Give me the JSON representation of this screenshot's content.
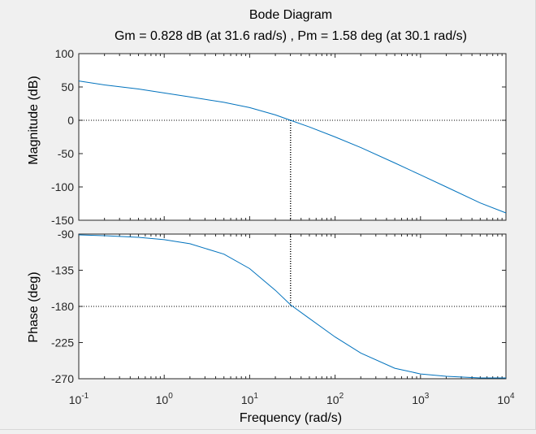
{
  "chart_data": [
    {
      "type": "line",
      "title": "Bode Diagram",
      "subtitle": "Gm = 0.828 dB (at 31.6 rad/s) ,  Pm = 1.58 deg (at 30.1 rad/s)",
      "xlabel": "Frequency  (rad/s)",
      "ylabel": "Magnitude (dB)",
      "xscale": "log",
      "xlim": [
        0.1,
        10000
      ],
      "ylim": [
        -150,
        100
      ],
      "yticks": [
        -150,
        -100,
        -50,
        0,
        50,
        100
      ],
      "series": [
        {
          "x": [
            0.1,
            0.2,
            0.5,
            1,
            2,
            5,
            10,
            20,
            30.1,
            50,
            100,
            200,
            500,
            1000,
            2000,
            5000,
            10000
          ],
          "values": [
            59,
            53,
            47,
            41,
            35,
            27,
            19,
            8,
            0,
            -10,
            -25,
            -41,
            -64,
            -82,
            -100,
            -124,
            -139
          ]
        }
      ],
      "crossover_line": {
        "x": 30.1,
        "y": 0
      },
      "grid": false,
      "axis_color": "#262626",
      "line_color": "#0072bd"
    },
    {
      "type": "line",
      "xlabel": "Frequency  (rad/s)",
      "ylabel": "Phase (deg)",
      "xscale": "log",
      "xlim": [
        0.1,
        10000
      ],
      "ylim": [
        -270,
        -90
      ],
      "yticks": [
        -270,
        -225,
        -180,
        -135,
        -90
      ],
      "xticks": [
        {
          "base": "10",
          "exp": "-1",
          "value": 0.1
        },
        {
          "base": "10",
          "exp": "0",
          "value": 1
        },
        {
          "base": "10",
          "exp": "1",
          "value": 10
        },
        {
          "base": "10",
          "exp": "2",
          "value": 100
        },
        {
          "base": "10",
          "exp": "3",
          "value": 1000
        },
        {
          "base": "10",
          "exp": "4",
          "value": 10000
        }
      ],
      "series": [
        {
          "x": [
            0.1,
            0.2,
            0.5,
            1,
            2,
            5,
            10,
            20,
            30.1,
            50,
            100,
            200,
            500,
            1000,
            2000,
            5000,
            10000
          ],
          "values": [
            -91,
            -92,
            -94,
            -97,
            -102,
            -115,
            -133,
            -160,
            -178,
            -195,
            -218,
            -238,
            -257,
            -264,
            -267,
            -269,
            -269
          ]
        }
      ],
      "crossover_line": {
        "x": 30.1,
        "y": -180
      },
      "grid": false,
      "axis_color": "#262626",
      "line_color": "#0072bd"
    }
  ]
}
